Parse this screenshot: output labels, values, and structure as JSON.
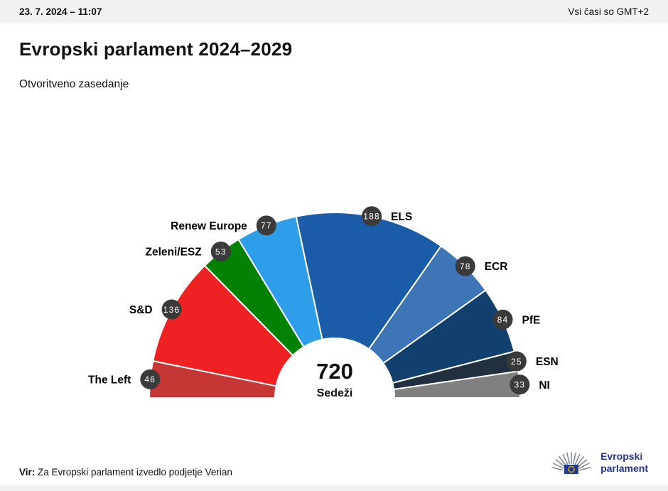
{
  "header": {
    "datetime": "23. 7. 2024 – 11:07",
    "timezone_note": "Vsi časi so GMT+2"
  },
  "page": {
    "title": "Evropski parlament 2024–2029",
    "subtitle": "Otvoritveno zasedanje"
  },
  "chart_data": {
    "type": "pie",
    "variant": "hemicycle-half-donut",
    "title": "Evropski parlament 2024–2029",
    "subtitle": "Otvoritveno zasedanje",
    "total": 720,
    "total_label": "720",
    "total_units": "Sedeži",
    "start_angle_deg": 180,
    "end_angle_deg": 0,
    "inner_radius_ratio": 0.32,
    "legend": "none (labels and seat badges around arc)",
    "badge_color": "#3a3a3a",
    "badge_text_color": "#ffffff",
    "series": [
      {
        "name": "The Left",
        "seats": 46,
        "color": "#c53634"
      },
      {
        "name": "S&D",
        "seats": 136,
        "color": "#ee2223"
      },
      {
        "name": "Zeleni/ESZ",
        "seats": 53,
        "color": "#038103"
      },
      {
        "name": "Renew Europe",
        "seats": 77,
        "color": "#2f9ee8"
      },
      {
        "name": "ELS",
        "seats": 188,
        "color": "#1a5ca8"
      },
      {
        "name": "ECR",
        "seats": 78,
        "color": "#3d75b6"
      },
      {
        "name": "PfE",
        "seats": 84,
        "color": "#12406e"
      },
      {
        "name": "ESN",
        "seats": 25,
        "color": "#20303f"
      },
      {
        "name": "NI",
        "seats": 33,
        "color": "#808080"
      }
    ]
  },
  "footer": {
    "source_label": "Vir:",
    "source_text": " Za Evropski parlament izvedlo podjetje Verian"
  },
  "logo": {
    "line1": "Evropski",
    "line2": "parlament"
  }
}
